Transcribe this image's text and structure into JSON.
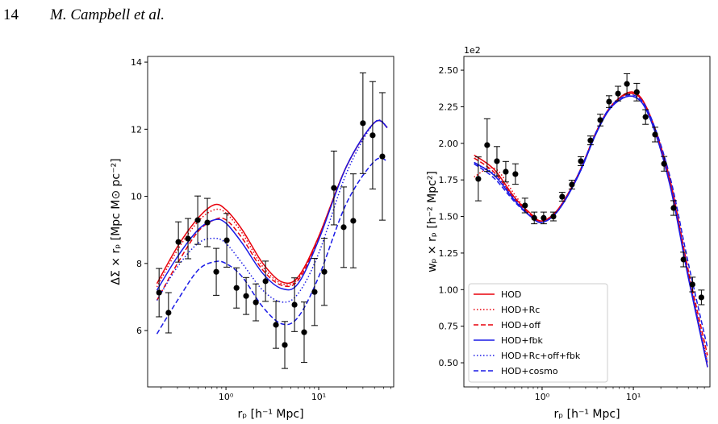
{
  "header": {
    "page": "14",
    "running_title": "M. Campbell et al."
  },
  "chart_data": [
    {
      "type": "line",
      "xlabel": "rₚ [h⁻¹ Mpc]",
      "ylabel": "ΔΣ × rₚ [Mpc M⊙ pc⁻²]",
      "xscale": "log",
      "xlim": [
        0.143,
        64.4
      ],
      "ylim": [
        4.32,
        14.17
      ],
      "xticks": [
        {
          "value": 1,
          "label": "10⁰"
        },
        {
          "value": 10,
          "label": "10¹"
        }
      ],
      "xminorticks": [
        0.2,
        0.3,
        0.4,
        0.5,
        0.6,
        0.7,
        0.8,
        0.9,
        2,
        3,
        4,
        5,
        6,
        7,
        8,
        9,
        20,
        30,
        40,
        50,
        60
      ],
      "yticks": [
        6,
        8,
        10,
        12,
        14
      ],
      "points": {
        "color": "#000000",
        "x": [
          0.19,
          0.24,
          0.307,
          0.39,
          0.496,
          0.63,
          0.786,
          1.02,
          1.3,
          1.65,
          2.1,
          2.67,
          3.46,
          4.31,
          5.49,
          6.97,
          9.03,
          11.5,
          14.6,
          18.6,
          23.6,
          30.0,
          38.2,
          48.6
        ],
        "values": [
          7.13,
          6.53,
          8.64,
          8.74,
          9.29,
          9.22,
          7.75,
          8.69,
          7.27,
          7.03,
          6.84,
          7.47,
          6.17,
          5.57,
          6.77,
          5.95,
          7.15,
          7.75,
          10.25,
          9.08,
          9.27,
          12.18,
          11.82,
          11.19
        ],
        "errors": [
          0.72,
          0.6,
          0.6,
          0.6,
          0.72,
          0.72,
          0.7,
          0.8,
          0.6,
          0.55,
          0.55,
          0.6,
          0.7,
          0.7,
          0.8,
          0.9,
          1.0,
          1.0,
          1.1,
          1.2,
          1.4,
          1.5,
          1.6,
          1.9
        ]
      },
      "curve_x": [
        0.18,
        0.3,
        0.5,
        0.75,
        1,
        1.5,
        2.5,
        4,
        6,
        10,
        20,
        40,
        55
      ],
      "series": [
        {
          "name": "HOD",
          "color": "#e8000b",
          "dash": "solid",
          "values": [
            7.4,
            8.5,
            9.35,
            9.75,
            9.6,
            9.0,
            8.0,
            7.45,
            7.6,
            8.8,
            10.9,
            12.2,
            12.05
          ]
        },
        {
          "name": "HOD+Rc",
          "color": "#e8000b",
          "dash": "dotted",
          "values": [
            7.3,
            8.4,
            9.25,
            9.6,
            9.5,
            8.9,
            7.9,
            7.4,
            7.55,
            8.8,
            10.9,
            12.2,
            12.05
          ]
        },
        {
          "name": "HOD+off",
          "color": "#e8000b",
          "dash": "dashed",
          "values": [
            6.9,
            8.0,
            8.95,
            9.3,
            9.3,
            8.75,
            7.8,
            7.35,
            7.5,
            8.75,
            10.9,
            12.2,
            12.05
          ]
        },
        {
          "name": "HOD+fbk",
          "color": "#1a1ae6",
          "dash": "solid",
          "values": [
            7.2,
            8.2,
            9.0,
            9.3,
            9.2,
            8.6,
            7.7,
            7.25,
            7.4,
            8.7,
            10.9,
            12.2,
            12.05
          ]
        },
        {
          "name": "HOD+Rc+off+fbk",
          "color": "#1a1ae6",
          "dash": "dotted",
          "values": [
            6.9,
            7.9,
            8.6,
            8.75,
            8.6,
            8.0,
            7.2,
            6.85,
            7.1,
            8.3,
            10.7,
            12.2,
            12.05
          ]
        },
        {
          "name": "HOD+cosmo",
          "color": "#1a1ae6",
          "dash": "dashed",
          "values": [
            5.9,
            6.9,
            7.8,
            8.05,
            8.0,
            7.6,
            6.7,
            6.2,
            6.4,
            7.6,
            9.8,
            11.05,
            11.05
          ]
        }
      ]
    },
    {
      "type": "line",
      "xlabel": "rₚ [h⁻¹ Mpc]",
      "ylabel": "wₚ × rₚ [h⁻² Mpc²]",
      "y_offset_label": "1e2",
      "xscale": "log",
      "xlim": [
        0.139,
        69
      ],
      "ylim": [
        0.335,
        2.594
      ],
      "xticks": [
        {
          "value": 1,
          "label": "10⁰"
        },
        {
          "value": 10,
          "label": "10¹"
        }
      ],
      "xminorticks": [
        0.2,
        0.3,
        0.4,
        0.5,
        0.6,
        0.7,
        0.8,
        0.9,
        2,
        3,
        4,
        5,
        6,
        7,
        8,
        9,
        20,
        30,
        40,
        50,
        60
      ],
      "yticks": [
        {
          "value": 0.5,
          "label": "0.50"
        },
        {
          "value": 0.75,
          "label": "0.75"
        },
        {
          "value": 1,
          "label": "1.00"
        },
        {
          "value": 1.25,
          "label": "1.25"
        },
        {
          "value": 1.5,
          "label": "1.50"
        },
        {
          "value": 1.75,
          "label": "1.75"
        },
        {
          "value": 2,
          "label": "2.00"
        },
        {
          "value": 2.25,
          "label": "2.25"
        },
        {
          "value": 2.5,
          "label": "2.50"
        }
      ],
      "points": {
        "color": "#000000",
        "x": [
          0.2,
          0.25,
          0.32,
          0.4,
          0.51,
          0.65,
          0.82,
          1.04,
          1.33,
          1.66,
          2.12,
          2.66,
          3.39,
          4.34,
          5.42,
          6.79,
          8.5,
          10.9,
          13.6,
          17.3,
          21.7,
          27.6,
          35.4,
          44.4,
          55.6
        ],
        "values": [
          1.757,
          1.988,
          1.878,
          1.806,
          1.79,
          1.575,
          1.49,
          1.49,
          1.5,
          1.635,
          1.718,
          1.878,
          2.02,
          2.159,
          2.285,
          2.34,
          2.406,
          2.35,
          2.18,
          2.06,
          1.86,
          1.558,
          1.206,
          1.035,
          0.947
        ],
        "errors": [
          0.15,
          0.18,
          0.1,
          0.07,
          0.07,
          0.05,
          0.04,
          0.04,
          0.03,
          0.03,
          0.03,
          0.03,
          0.03,
          0.04,
          0.04,
          0.05,
          0.07,
          0.06,
          0.05,
          0.05,
          0.05,
          0.05,
          0.05,
          0.05,
          0.05
        ]
      },
      "curve_x": [
        0.18,
        0.3,
        0.5,
        0.75,
        1,
        1.5,
        2.5,
        4,
        6,
        10,
        15,
        25,
        40,
        65
      ],
      "legend": "lower left",
      "series": [
        {
          "name": "HOD",
          "color": "#e8000b",
          "dash": "solid",
          "values": [
            1.92,
            1.82,
            1.63,
            1.52,
            1.47,
            1.55,
            1.79,
            2.09,
            2.27,
            2.35,
            2.2,
            1.75,
            1.1,
            0.47
          ]
        },
        {
          "name": "HOD+Rc",
          "color": "#e8000b",
          "dash": "dotted",
          "values": [
            1.77,
            1.83,
            1.65,
            1.5,
            1.47,
            1.55,
            1.79,
            2.09,
            2.27,
            2.34,
            2.2,
            1.75,
            1.1,
            0.5
          ]
        },
        {
          "name": "HOD+off",
          "color": "#e8000b",
          "dash": "dashed",
          "values": [
            1.9,
            1.8,
            1.62,
            1.51,
            1.47,
            1.55,
            1.79,
            2.09,
            2.27,
            2.34,
            2.2,
            1.76,
            1.13,
            0.55
          ]
        },
        {
          "name": "HOD+fbk",
          "color": "#1a1ae6",
          "dash": "solid",
          "values": [
            1.87,
            1.78,
            1.61,
            1.5,
            1.46,
            1.54,
            1.78,
            2.08,
            2.26,
            2.32,
            2.18,
            1.72,
            1.08,
            0.47
          ]
        },
        {
          "name": "HOD+Rc+off+fbk",
          "color": "#1a1ae6",
          "dash": "dotted",
          "values": [
            1.86,
            1.79,
            1.62,
            1.5,
            1.46,
            1.54,
            1.78,
            2.08,
            2.26,
            2.32,
            2.18,
            1.73,
            1.1,
            0.5
          ]
        },
        {
          "name": "HOD+cosmo",
          "color": "#1a1ae6",
          "dash": "dashed",
          "values": [
            1.86,
            1.76,
            1.6,
            1.5,
            1.46,
            1.54,
            1.79,
            2.09,
            2.27,
            2.33,
            2.2,
            1.78,
            1.18,
            0.6
          ]
        }
      ]
    }
  ]
}
